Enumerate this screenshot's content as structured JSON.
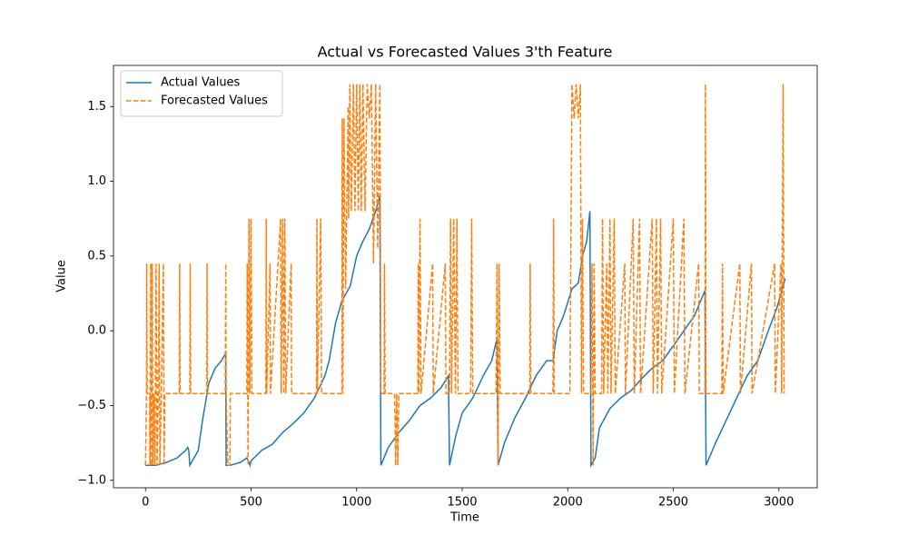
{
  "chart_data": {
    "type": "line",
    "title": "Actual vs Forecasted Values 3'th Feature",
    "x_label": "Time",
    "y_label": "Value",
    "xlim": [
      -151.5,
      3181.5
    ],
    "ylim": [
      -1.05,
      1.775
    ],
    "xticks": [
      0,
      500,
      1000,
      1500,
      2000,
      2500,
      3000
    ],
    "yticks": [
      {
        "value": -1.0,
        "label": "−1.0"
      },
      {
        "value": -0.5,
        "label": "−0.5"
      },
      {
        "value": 0.0,
        "label": "0.0"
      },
      {
        "value": 0.5,
        "label": "0.5"
      },
      {
        "value": 1.0,
        "label": "1.0"
      },
      {
        "value": 1.5,
        "label": "1.5"
      }
    ],
    "grid": false,
    "legend": "upper left",
    "series": [
      {
        "name": "Actual Values",
        "color": "#1f77b4",
        "dashed": false,
        "x": [
          0,
          50,
          100,
          150,
          190,
          200,
          205,
          210,
          250,
          270,
          300,
          330,
          360,
          380,
          382,
          400,
          450,
          480,
          490,
          495,
          500,
          550,
          600,
          650,
          700,
          750,
          800,
          850,
          870,
          900,
          930,
          970,
          1000,
          1030,
          1060,
          1090,
          1110,
          1115,
          1150,
          1200,
          1250,
          1300,
          1350,
          1400,
          1435,
          1440,
          1470,
          1500,
          1550,
          1600,
          1640,
          1665,
          1670,
          1700,
          1750,
          1800,
          1850,
          1900,
          1930,
          1950,
          1980,
          2020,
          2050,
          2070,
          2090,
          2105,
          2110,
          2130,
          2150,
          2200,
          2250,
          2300,
          2350,
          2400,
          2450,
          2500,
          2550,
          2600,
          2650,
          2655,
          2700,
          2750,
          2800,
          2850,
          2900,
          2950,
          2990,
          3030
        ],
        "values": [
          -0.9,
          -0.9,
          -0.88,
          -0.85,
          -0.8,
          -0.78,
          -0.8,
          -0.9,
          -0.8,
          -0.6,
          -0.35,
          -0.25,
          -0.2,
          -0.15,
          -0.9,
          -0.9,
          -0.88,
          -0.85,
          -0.88,
          -0.9,
          -0.87,
          -0.8,
          -0.76,
          -0.68,
          -0.62,
          -0.55,
          -0.45,
          -0.3,
          -0.2,
          0.05,
          0.2,
          0.3,
          0.5,
          0.6,
          0.68,
          0.8,
          0.9,
          -0.9,
          -0.78,
          -0.68,
          -0.6,
          -0.5,
          -0.45,
          -0.38,
          -0.3,
          -0.9,
          -0.7,
          -0.55,
          -0.45,
          -0.3,
          -0.2,
          -0.05,
          -0.9,
          -0.75,
          -0.58,
          -0.45,
          -0.3,
          -0.2,
          -0.2,
          0.0,
          0.1,
          0.28,
          0.32,
          0.5,
          0.6,
          0.8,
          -0.9,
          -0.85,
          -0.65,
          -0.52,
          -0.45,
          -0.4,
          -0.32,
          -0.25,
          -0.2,
          -0.1,
          0.0,
          0.1,
          0.27,
          -0.9,
          -0.75,
          -0.6,
          -0.45,
          -0.3,
          -0.2,
          0.0,
          0.15,
          0.35
        ]
      },
      {
        "name": "Forecasted Values",
        "color": "#ff7f0e",
        "dashed": true,
        "x": [
          0,
          5,
          6,
          8,
          20,
          21,
          25,
          28,
          32,
          35,
          40,
          45,
          50,
          55,
          60,
          65,
          68,
          75,
          85,
          88,
          92,
          160,
          162,
          164,
          210,
          212,
          214,
          290,
          292,
          294,
          378,
          380,
          382,
          390,
          400,
          402,
          480,
          482,
          486,
          490,
          494,
          500,
          504,
          570,
          572,
          574,
          590,
          592,
          640,
          643,
          650,
          655,
          660,
          664,
          690,
          692,
          810,
          812,
          814,
          830,
          834,
          930,
          932,
          935,
          940,
          948,
          960,
          962,
          968,
          975,
          985,
          992,
          1000,
          1008,
          1015,
          1022,
          1030,
          1040,
          1050,
          1060,
          1070,
          1080,
          1090,
          1100,
          1110,
          1115,
          1130,
          1132,
          1135,
          1180,
          1185,
          1190,
          1195,
          1200,
          1290,
          1292,
          1295,
          1300,
          1305,
          1360,
          1363,
          1420,
          1423,
          1440,
          1445,
          1450,
          1460,
          1468,
          1475,
          1480,
          1540,
          1545,
          1550,
          1660,
          1665,
          1670,
          1675,
          1680,
          1820,
          1822,
          1825,
          1930,
          1933,
          1936,
          2010,
          2020,
          2030,
          2040,
          2050,
          2060,
          2065,
          2070,
          2075,
          2110,
          2115,
          2120,
          2125,
          2130,
          2160,
          2165,
          2170,
          2185,
          2190,
          2200,
          2205,
          2220,
          2225,
          2270,
          2273,
          2310,
          2315,
          2340,
          2345,
          2400,
          2405,
          2420,
          2425,
          2440,
          2445,
          2500,
          2505,
          2550,
          2555,
          2620,
          2623,
          2650,
          2652,
          2655,
          2730,
          2733,
          2736,
          2815,
          2818,
          2870,
          2873,
          2980,
          2983,
          3010,
          3013,
          3020,
          3025
        ],
        "values": [
          -0.9,
          -0.42,
          0.45,
          -0.42,
          -0.42,
          -0.9,
          0.45,
          -0.9,
          0.45,
          -0.9,
          -0.42,
          -0.9,
          0.45,
          -0.9,
          -0.42,
          0.45,
          -0.9,
          -0.42,
          0.45,
          -0.9,
          -0.42,
          -0.42,
          0.45,
          -0.42,
          -0.42,
          0.45,
          -0.42,
          -0.42,
          0.45,
          -0.42,
          -0.42,
          0.45,
          -0.42,
          -0.9,
          -0.9,
          -0.42,
          -0.42,
          0.45,
          -0.9,
          0.75,
          -0.42,
          0.75,
          -0.42,
          -0.42,
          0.75,
          -0.42,
          0.45,
          -0.42,
          0.75,
          -0.42,
          0.75,
          -0.42,
          0.75,
          -0.42,
          0.45,
          -0.42,
          -0.42,
          0.75,
          -0.42,
          0.75,
          -0.42,
          -0.42,
          1.42,
          -0.42,
          1.42,
          0.28,
          1.5,
          0.75,
          1.65,
          0.8,
          1.65,
          0.8,
          1.65,
          0.8,
          1.65,
          0.8,
          1.65,
          0.8,
          1.65,
          1.42,
          1.65,
          0.45,
          1.65,
          0.55,
          1.65,
          -0.42,
          -0.42,
          0.45,
          -0.42,
          -0.42,
          -0.9,
          -0.42,
          -0.9,
          -0.42,
          -0.42,
          0.45,
          -0.42,
          0.75,
          -0.42,
          0.45,
          -0.42,
          0.45,
          -0.42,
          -0.42,
          0.75,
          -0.42,
          0.75,
          -0.42,
          0.75,
          -0.42,
          -0.42,
          0.75,
          -0.42,
          -0.42,
          0.45,
          -0.9,
          0.45,
          -0.42,
          -0.42,
          0.45,
          -0.42,
          -0.42,
          0.75,
          -0.42,
          -0.42,
          1.65,
          1.42,
          1.65,
          1.42,
          1.65,
          -0.42,
          0.75,
          -0.42,
          -0.42,
          0.45,
          -0.9,
          0.45,
          -0.42,
          -0.42,
          0.75,
          -0.42,
          0.45,
          -0.42,
          0.75,
          -0.42,
          0.75,
          -0.42,
          0.45,
          -0.42,
          0.75,
          -0.42,
          0.75,
          -0.42,
          0.75,
          -0.42,
          0.75,
          -0.42,
          0.75,
          -0.42,
          0.75,
          -0.42,
          0.75,
          -0.42,
          0.45,
          -0.42,
          -0.42,
          1.65,
          -0.42,
          -0.42,
          0.45,
          -0.42,
          0.45,
          -0.42,
          0.45,
          -0.42,
          0.45,
          -0.42,
          0.45,
          -0.42,
          1.65,
          -0.42
        ]
      }
    ]
  }
}
